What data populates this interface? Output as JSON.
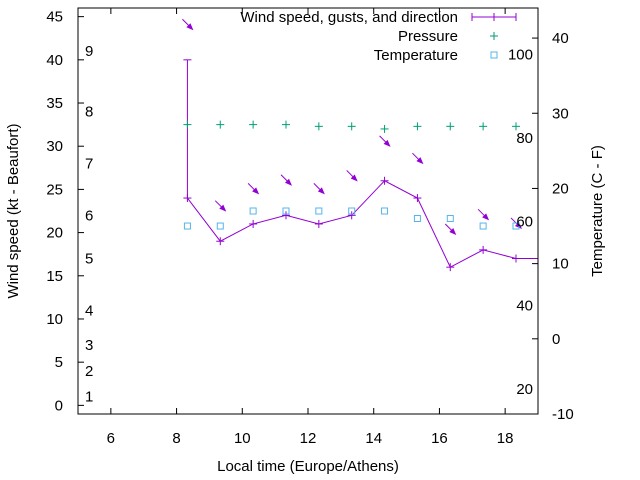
{
  "chart_data": {
    "type": "line",
    "title": "",
    "xlabel": "Local time (Europe/Athens)",
    "ylabel": "Wind speed (kt - Beaufort)",
    "y2label": "Temperature (C - F)",
    "xlim": [
      5,
      19
    ],
    "ylim": [
      -1,
      46
    ],
    "y2lim": [
      -10,
      44
    ],
    "xticks": [
      6,
      8,
      10,
      12,
      14,
      16,
      18
    ],
    "yticks": [
      0,
      5,
      10,
      15,
      20,
      25,
      30,
      35,
      40,
      45
    ],
    "y2ticks": [
      -10,
      0,
      10,
      20,
      30,
      40
    ],
    "beaufort_labels": [
      {
        "label": "1",
        "y": 1
      },
      {
        "label": "2",
        "y": 4
      },
      {
        "label": "3",
        "y": 7
      },
      {
        "label": "4",
        "y": 11
      },
      {
        "label": "5",
        "y": 17
      },
      {
        "label": "6",
        "y": 22
      },
      {
        "label": "7",
        "y": 28
      },
      {
        "label": "8",
        "y": 34
      },
      {
        "label": "9",
        "y": 41
      }
    ],
    "fahrenheit_labels": [
      {
        "label": "20",
        "t": -6.7
      },
      {
        "label": "40",
        "t": 4.4
      },
      {
        "label": "60",
        "t": 15.6
      },
      {
        "label": "80",
        "t": 26.7
      },
      {
        "label": "100",
        "t": 37.8
      }
    ],
    "legend_position": "top-right",
    "grid": false,
    "series": [
      {
        "name": "Wind speed, gusts, and direction",
        "color": "#9400d3",
        "x": [
          8.33,
          9.33,
          10.33,
          11.33,
          12.33,
          13.33,
          14.33,
          15.33,
          16.33,
          17.33,
          18.33,
          19
        ],
        "values": [
          24,
          19,
          21,
          22,
          21,
          22,
          26,
          24,
          16,
          18,
          17,
          17
        ],
        "gusts": [
          {
            "x": 8.33,
            "value": 40
          }
        ],
        "direction_arrows_x": [
          8.33,
          9.33,
          10.33,
          11.33,
          12.33,
          13.33,
          14.33,
          15.33,
          16.33,
          17.33,
          18.33
        ],
        "direction_arrows_y": [
          44,
          23,
          25,
          26,
          25,
          26.5,
          30.5,
          28.5,
          20.3,
          22,
          21
        ]
      },
      {
        "name": "Pressure",
        "color": "#009e73",
        "x": [
          8.33,
          9.33,
          10.33,
          11.33,
          12.33,
          13.33,
          14.33,
          15.33,
          16.33,
          17.33,
          18.33
        ],
        "values": [
          32.5,
          32.5,
          32.5,
          32.5,
          32.3,
          32.3,
          32,
          32.3,
          32.3,
          32.3,
          32.3
        ]
      },
      {
        "name": "Temperature",
        "color": "#56b4e9",
        "axis": "right",
        "x": [
          8.33,
          9.33,
          10.33,
          11.33,
          12.33,
          13.33,
          14.33,
          15.33,
          16.33,
          17.33,
          18.33
        ],
        "values": [
          15,
          15,
          17,
          17,
          17,
          17,
          17,
          16,
          16,
          15,
          15
        ]
      }
    ]
  }
}
